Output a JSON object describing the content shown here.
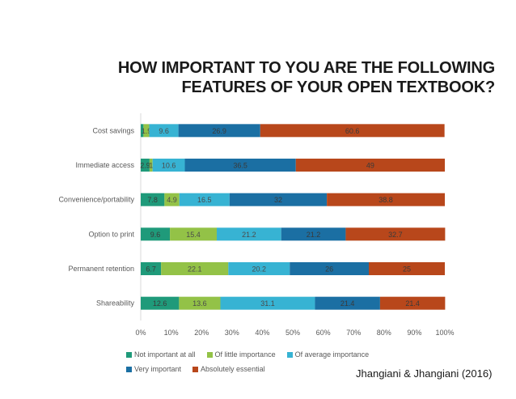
{
  "title_line1": "HOW IMPORTANT TO YOU ARE THE FOLLOWING",
  "title_line2": "FEATURES OF YOUR OPEN TEXTBOOK?",
  "credit": "Jhangiani & Jhangiani (2016)",
  "chart_data": {
    "type": "bar",
    "orientation": "horizontal",
    "stacked": "100%",
    "title": "HOW IMPORTANT TO YOU ARE THE FOLLOWING FEATURES OF YOUR OPEN TEXTBOOK?",
    "categories": [
      "Cost savings",
      "Immediate access",
      "Convenience/portability",
      "Option to print",
      "Permanent retention",
      "Shareability"
    ],
    "series": [
      {
        "name": "Not important at all",
        "color": "#1f9a7a",
        "values": [
          0.9,
          2.9,
          7.8,
          9.6,
          6.7,
          12.6
        ],
        "labels": [
          "",
          "2.9",
          "7.8",
          "9.6",
          "6.7",
          "12.6"
        ]
      },
      {
        "name": "Of little importance",
        "color": "#93c247",
        "values": [
          1.9,
          1.0,
          4.9,
          15.4,
          22.1,
          13.6
        ],
        "labels": [
          "1.9",
          "1",
          "4.9",
          "15.4",
          "22.1",
          "13.6"
        ]
      },
      {
        "name": "Of average importance",
        "color": "#37b3d3",
        "values": [
          9.6,
          10.6,
          16.5,
          21.2,
          20.2,
          31.1
        ],
        "labels": [
          "9.6",
          "10.6",
          "16.5",
          "21.2",
          "20.2",
          "31.1"
        ]
      },
      {
        "name": "Very important",
        "color": "#1b6fa3",
        "values": [
          26.9,
          36.5,
          32,
          21.2,
          26,
          21.4
        ],
        "labels": [
          "26.9",
          "36.5",
          "32",
          "21.2",
          "26",
          "21.4"
        ]
      },
      {
        "name": "Absolutely essential",
        "color": "#b8471b",
        "values": [
          60.6,
          49,
          38.8,
          32.7,
          25,
          21.4
        ],
        "labels": [
          "60.6",
          "49",
          "38.8",
          "32.7",
          "25",
          "21.4"
        ]
      }
    ],
    "xaxis_ticks": [
      "0%",
      "10%",
      "20%",
      "30%",
      "40%",
      "50%",
      "60%",
      "70%",
      "80%",
      "90%",
      "100%"
    ],
    "xlim": [
      0,
      100
    ],
    "legend": "bottom"
  }
}
